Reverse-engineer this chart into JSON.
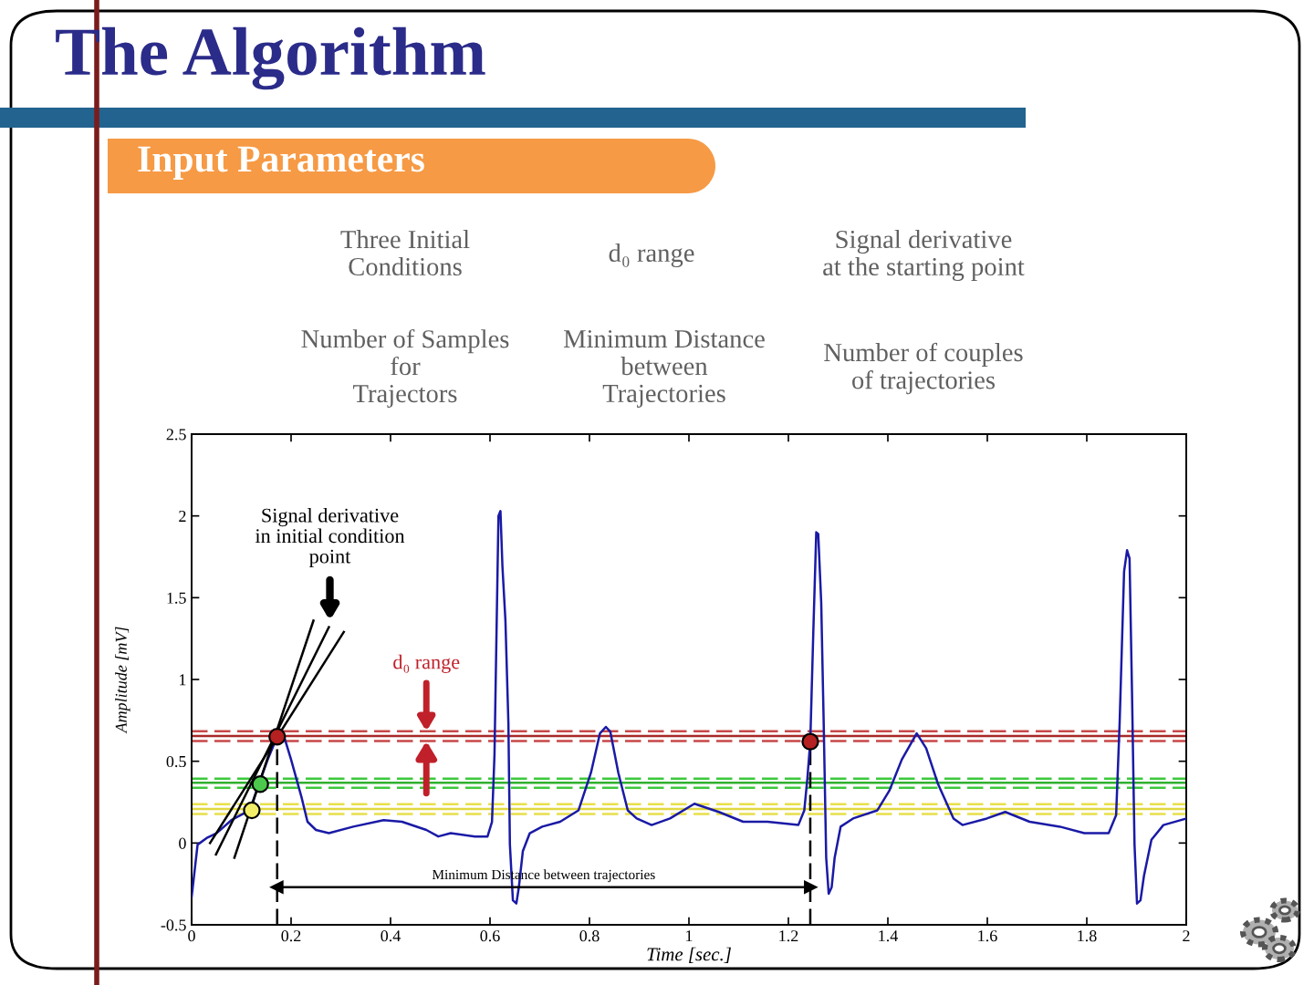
{
  "chart_data": {
    "type": "line",
    "title": "The Algorithm",
    "subtitle": "Input Parameters",
    "xlabel": "Time [sec.]",
    "ylabel": "Amplitude [mV]",
    "xlim": [
      0,
      2
    ],
    "xticks": [
      0,
      0.2,
      0.4,
      0.6,
      0.8,
      1,
      1.2,
      1.4,
      1.6,
      1.8,
      2
    ],
    "ylim": [
      -0.5,
      2.5
    ],
    "yticks": [
      -0.5,
      0,
      0.5,
      1,
      1.5,
      2,
      2.5
    ],
    "series": [
      {
        "color": "#1a1aa6",
        "line_style": "solid",
        "x": [
          0.0,
          0.012,
          0.03,
          0.05,
          0.08,
          0.117,
          0.135,
          0.153,
          0.172,
          0.184,
          0.2,
          0.221,
          0.233,
          0.25,
          0.276,
          0.325,
          0.386,
          0.423,
          0.472,
          0.496,
          0.521,
          0.57,
          0.595,
          0.604,
          0.609,
          0.617,
          0.621,
          0.625,
          0.631,
          0.637,
          0.64,
          0.646,
          0.653,
          0.658,
          0.666,
          0.68,
          0.705,
          0.741,
          0.778,
          0.803,
          0.821,
          0.833,
          0.842,
          0.858,
          0.877,
          0.895,
          0.925,
          0.962,
          1.011,
          1.06,
          1.109,
          1.158,
          1.22,
          1.232,
          1.238,
          1.244,
          1.25,
          1.256,
          1.26,
          1.266,
          1.271,
          1.276,
          1.281,
          1.287,
          1.293,
          1.305,
          1.33,
          1.379,
          1.403,
          1.428,
          1.458,
          1.477,
          1.501,
          1.532,
          1.55,
          1.599,
          1.636,
          1.685,
          1.746,
          1.795,
          1.844,
          1.859,
          1.866,
          1.875,
          1.881,
          1.886,
          1.891,
          1.896,
          1.901,
          1.908,
          1.915,
          1.93,
          1.954,
          2.0
        ],
        "values": [
          -0.33,
          -0.01,
          0.03,
          0.06,
          0.14,
          0.2,
          0.36,
          0.51,
          0.65,
          0.67,
          0.51,
          0.28,
          0.13,
          0.08,
          0.06,
          0.1,
          0.14,
          0.13,
          0.08,
          0.04,
          0.06,
          0.04,
          0.04,
          0.13,
          0.54,
          2.0,
          2.03,
          1.69,
          1.36,
          0.73,
          -0.01,
          -0.35,
          -0.37,
          -0.27,
          -0.05,
          0.06,
          0.1,
          0.13,
          0.2,
          0.43,
          0.67,
          0.71,
          0.68,
          0.43,
          0.2,
          0.15,
          0.11,
          0.15,
          0.24,
          0.19,
          0.13,
          0.13,
          0.11,
          0.2,
          0.39,
          0.62,
          1.28,
          1.9,
          1.89,
          1.47,
          0.73,
          -0.09,
          -0.31,
          -0.27,
          -0.09,
          0.1,
          0.15,
          0.2,
          0.32,
          0.51,
          0.67,
          0.58,
          0.36,
          0.15,
          0.11,
          0.15,
          0.19,
          0.13,
          0.1,
          0.06,
          0.06,
          0.17,
          0.73,
          1.66,
          1.79,
          1.74,
          0.91,
          -0.01,
          -0.37,
          -0.35,
          -0.2,
          0.02,
          0.11,
          0.15
        ]
      },
      {
        "color": "#000000",
        "line_style": "solid",
        "x": [
          0.049,
          0.276
        ],
        "values": [
          -0.07,
          1.32
        ]
      },
      {
        "color": "#000000",
        "line_style": "solid",
        "x": [
          0.086,
          0.245
        ],
        "values": [
          -0.09,
          1.36
        ]
      },
      {
        "color": "#000000",
        "line_style": "solid",
        "x": [
          0.037,
          0.306
        ],
        "values": [
          0.0,
          1.29
        ]
      },
      {
        "name": "Minimum Distance between trajectories",
        "color": "#000000",
        "line_style": "solid",
        "marker": "triangle",
        "x": [
          0.172,
          1.244
        ],
        "values": [
          -0.27,
          -0.27
        ]
      },
      {
        "type": "scatter",
        "marker": "circle",
        "x": [
          0.121,
          0.138,
          0.172,
          1.244
        ],
        "values": [
          0.2,
          0.36,
          0.65,
          0.62
        ],
        "colors": [
          "#f2ee6a",
          "#4cc84c",
          "#b52020",
          "#b52020"
        ]
      }
    ],
    "ref_lines": [
      {
        "axis": "y",
        "value": 0.683,
        "color": "#c84848",
        "line_style": "dashed"
      },
      {
        "axis": "y",
        "value": 0.654,
        "color": "#a82828",
        "line_style": "solid"
      },
      {
        "axis": "y",
        "value": 0.624,
        "color": "#c84848",
        "line_style": "dashed"
      },
      {
        "axis": "y",
        "value": 0.394,
        "color": "#3cc83c",
        "line_style": "dashed"
      },
      {
        "axis": "y",
        "value": 0.368,
        "color": "#30b030",
        "line_style": "solid"
      },
      {
        "axis": "y",
        "value": 0.338,
        "color": "#3cc83c",
        "line_style": "dashed"
      },
      {
        "axis": "y",
        "value": 0.237,
        "color": "#e8e04a",
        "line_style": "dashed"
      },
      {
        "axis": "y",
        "value": 0.208,
        "color": "#e0d840",
        "line_style": "solid"
      },
      {
        "axis": "y",
        "value": 0.178,
        "color": "#e8e04a",
        "line_style": "dashed"
      },
      {
        "axis": "x",
        "value": 0.172,
        "color": "#000000",
        "line_style": "dashed"
      },
      {
        "axis": "x",
        "value": 1.244,
        "color": "#000000",
        "line_style": "dashed"
      }
    ],
    "annotations": [
      "Three Initial\nConditions",
      "d₀ range",
      "Signal derivative\nat the starting point",
      "Number of Samples\nfor\nTrajectors",
      "Minimum Distance\nbetween\nTrajectories",
      "Number of couples\nof trajectories",
      {
        "text": "Signal derivative\nin initial condition\npoint",
        "x": 0.278,
        "y": 1.36
      },
      {
        "text": "d₀ range",
        "x": 0.472,
        "y": 0.683
      }
    ]
  }
}
